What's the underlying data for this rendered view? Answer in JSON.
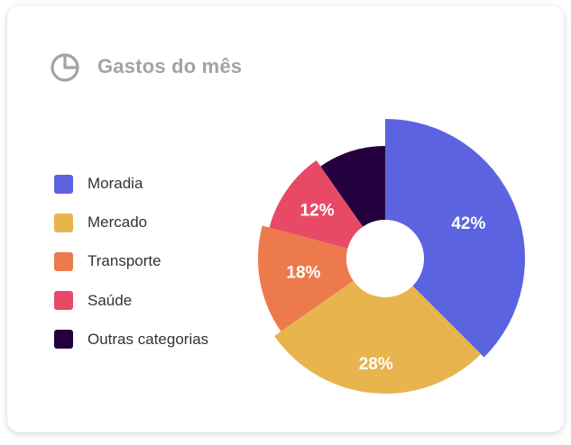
{
  "header": {
    "title": "Gastos do mês",
    "icon": "pie-chart-icon"
  },
  "colors": {
    "Moradia": "#5c63e0",
    "Mercado": "#e8b44e",
    "Transporte": "#ec7a4c",
    "Saúde": "#e84a66",
    "Outras categorias": "#24003f"
  },
  "chart_data": {
    "type": "pie",
    "variant": "polar-area-donut",
    "categories": [
      "Moradia",
      "Mercado",
      "Transporte",
      "Saúde",
      "Outras categorias"
    ],
    "values": [
      42,
      28,
      18,
      12,
      null
    ],
    "labels": [
      "42%",
      "28%",
      "18%",
      "12%",
      ""
    ],
    "legend": "left"
  }
}
